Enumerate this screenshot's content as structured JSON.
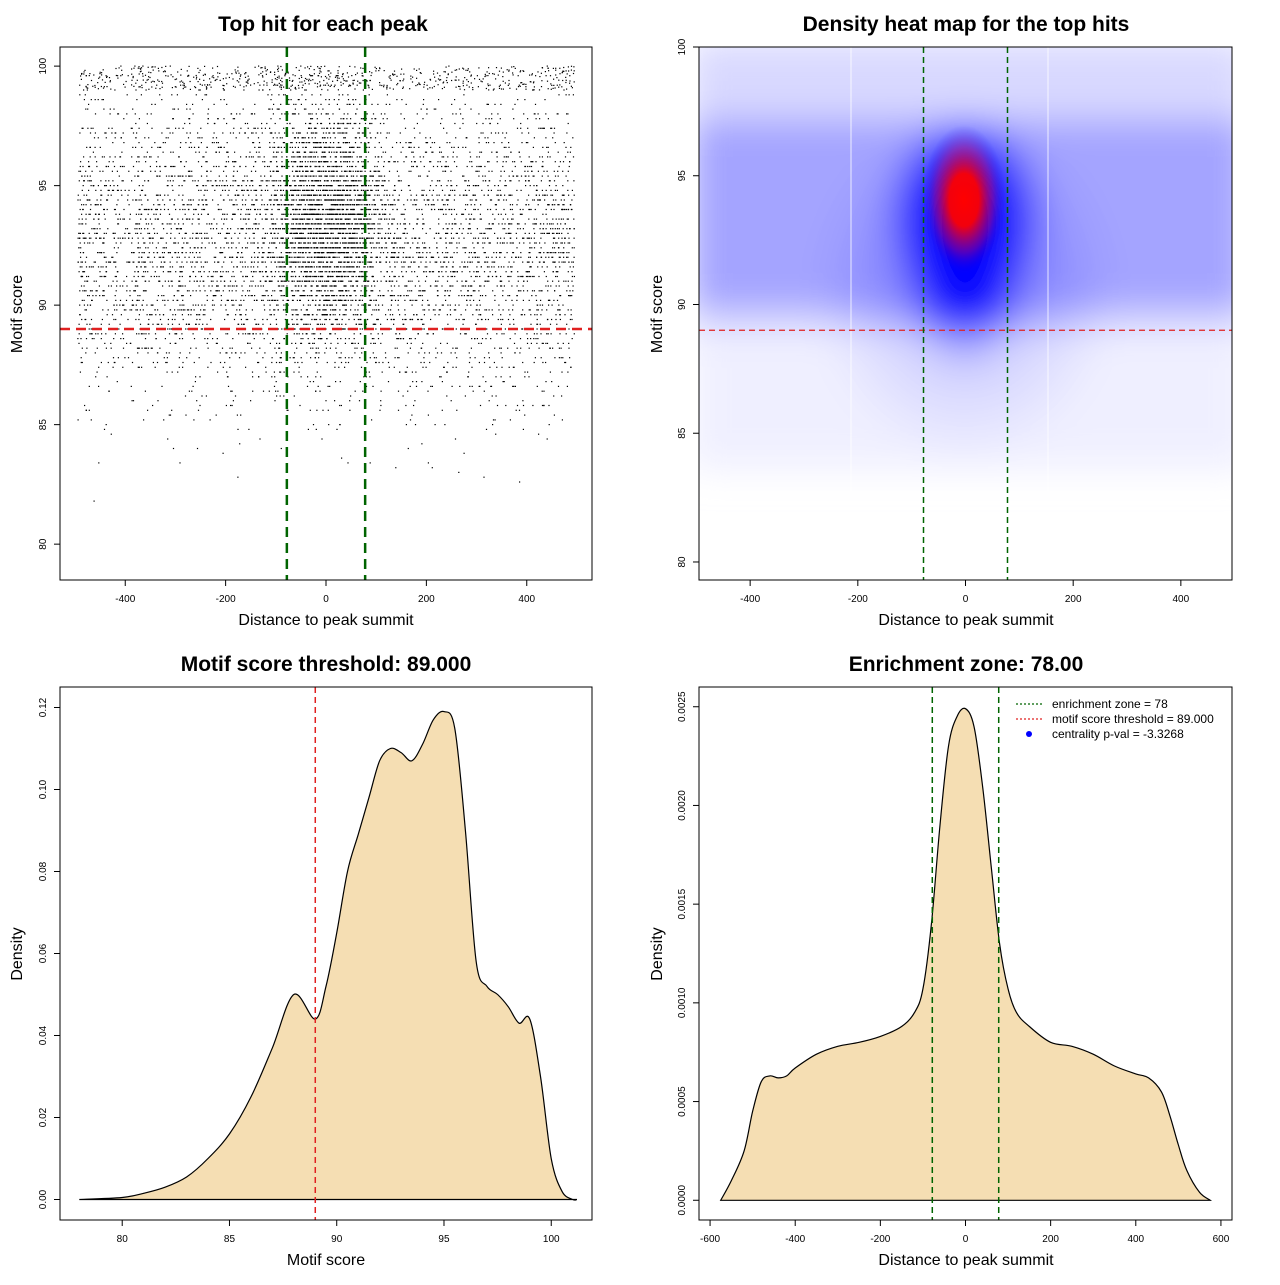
{
  "chart_data": [
    {
      "type": "scatter",
      "title": "Top hit for each peak",
      "xlabel": "Distance to peak summit",
      "ylabel": "Motif score",
      "xlim": [
        -530,
        530
      ],
      "ylim": [
        78.5,
        100.8
      ],
      "xticks": [
        -400,
        -200,
        0,
        200,
        400
      ],
      "yticks": [
        80,
        85,
        90,
        95,
        100
      ],
      "point_color": "#000000",
      "threshold_y": 89,
      "threshold_color": "#e02020",
      "enrichment_x": [
        -78,
        78
      ],
      "enrichment_color": "#006400",
      "points_summary": "Dense cloud of top-hit motif positions spanning -500 to 500 bp, concentrated near 0 and between motif scores 89 and 97"
    },
    {
      "type": "heatmap",
      "title": "Density heat map for the top hits",
      "xlabel": "Distance to peak summit",
      "ylabel": "Motif score",
      "xlim": [
        -495,
        495
      ],
      "ylim": [
        79.3,
        100.0
      ],
      "xticks": [
        -400,
        -200,
        0,
        200,
        400
      ],
      "yticks": [
        80,
        85,
        90,
        95,
        100
      ],
      "colors": [
        "#ffffff",
        "#0000ff",
        "#ff0000"
      ],
      "peak_density_at": [
        0,
        94
      ],
      "threshold_y": 89,
      "threshold_color": "#e02020",
      "enrichment_x": [
        -78,
        78
      ],
      "enrichment_color": "#006400"
    },
    {
      "type": "area",
      "title": "Motif score threshold: 89.000",
      "xlabel": "Motif score",
      "ylabel": "Density",
      "xlim": [
        77.1,
        101.9
      ],
      "ylim": [
        -0.005,
        0.125
      ],
      "xticks": [
        80,
        85,
        90,
        95,
        100
      ],
      "yticks": [
        0.0,
        0.02,
        0.04,
        0.06,
        0.08,
        0.1,
        0.12
      ],
      "ytick_labels": [
        "0.00",
        "0.02",
        "0.04",
        "0.06",
        "0.08",
        "0.10",
        "0.12"
      ],
      "fill": "#f5deb3",
      "threshold_x": 89,
      "threshold_color": "#e02020",
      "x": [
        78,
        80,
        81,
        82,
        83,
        84,
        85,
        86,
        87,
        88,
        89,
        89.5,
        90,
        90.5,
        91,
        91.5,
        92,
        92.5,
        93,
        93.5,
        94,
        94.5,
        95,
        95.5,
        96,
        96.5,
        97,
        97.5,
        98,
        98.5,
        99,
        99.5,
        100,
        100.5,
        101,
        101.2
      ],
      "y": [
        0.0,
        0.0005,
        0.0015,
        0.003,
        0.0055,
        0.01,
        0.016,
        0.025,
        0.037,
        0.05,
        0.044,
        0.052,
        0.065,
        0.08,
        0.089,
        0.098,
        0.107,
        0.11,
        0.109,
        0.107,
        0.111,
        0.117,
        0.119,
        0.115,
        0.09,
        0.058,
        0.052,
        0.05,
        0.047,
        0.043,
        0.044,
        0.03,
        0.01,
        0.002,
        0.0,
        0.0
      ]
    },
    {
      "type": "area",
      "title": "Enrichment zone: 78.00",
      "xlabel": "Distance to peak summit",
      "ylabel": "Density",
      "xlim": [
        -626,
        626
      ],
      "ylim": [
        -0.0001,
        0.0026
      ],
      "xticks": [
        -600,
        -400,
        -200,
        0,
        200,
        400,
        600
      ],
      "yticks": [
        0.0,
        0.0005,
        0.001,
        0.0015,
        0.002,
        0.0025
      ],
      "ytick_labels": [
        "0.0000",
        "0.0005",
        "0.0010",
        "0.0015",
        "0.0020",
        "0.0025"
      ],
      "fill": "#f5deb3",
      "enrichment_x": [
        -78,
        78
      ],
      "enrichment_color": "#006400",
      "x": [
        -575,
        -550,
        -520,
        -500,
        -480,
        -460,
        -440,
        -420,
        -400,
        -350,
        -300,
        -250,
        -200,
        -150,
        -120,
        -100,
        -80,
        -60,
        -40,
        -20,
        0,
        20,
        40,
        60,
        80,
        100,
        120,
        150,
        200,
        250,
        300,
        350,
        400,
        430,
        460,
        480,
        500,
        520,
        550,
        575
      ],
      "y": [
        0.0,
        0.0001,
        0.00025,
        0.00045,
        0.0006,
        0.00063,
        0.00062,
        0.00063,
        0.00067,
        0.00074,
        0.00078,
        0.0008,
        0.00083,
        0.00088,
        0.00095,
        0.00107,
        0.0014,
        0.0019,
        0.0023,
        0.00245,
        0.00249,
        0.0024,
        0.0021,
        0.0017,
        0.0013,
        0.00107,
        0.00095,
        0.00088,
        0.0008,
        0.00078,
        0.00074,
        0.00068,
        0.00064,
        0.00062,
        0.00055,
        0.00043,
        0.00028,
        0.00015,
        4e-05,
        0.0
      ],
      "legend": [
        {
          "label": "enrichment zone = 78",
          "color": "#006400",
          "style": "dotted-line"
        },
        {
          "label": "motif score threshold = 89.000",
          "color": "#e02020",
          "style": "dotted-line"
        },
        {
          "label": "centrality p-val = -3.3268",
          "color": "#0000ff",
          "style": "point"
        }
      ]
    }
  ]
}
